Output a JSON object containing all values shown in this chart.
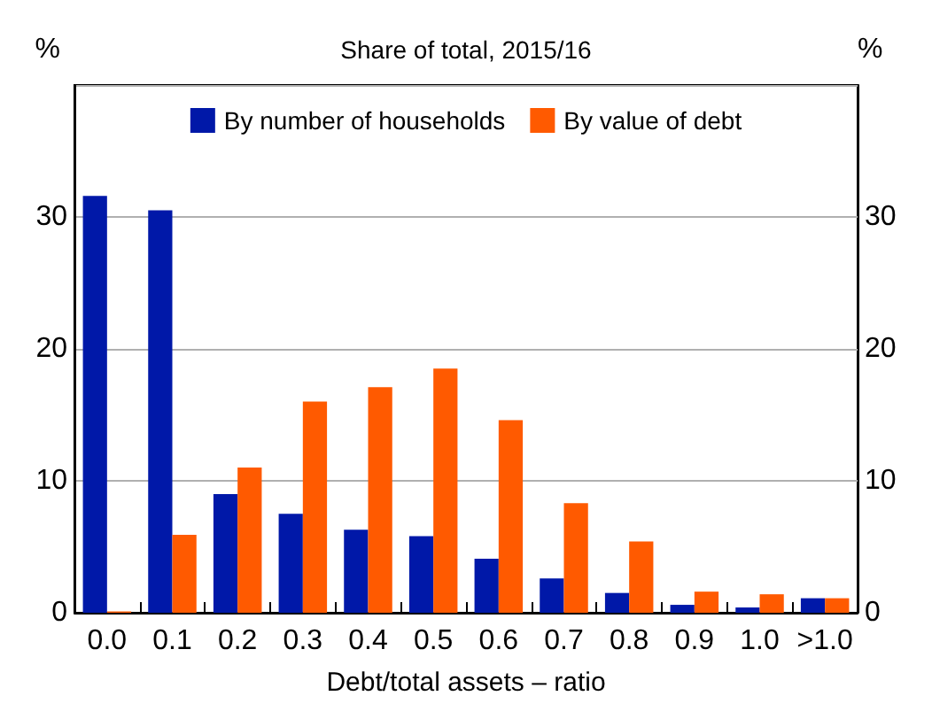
{
  "chart_data": {
    "type": "bar",
    "title": "Share of total, 2015/16",
    "xlabel": "Debt/total assets – ratio",
    "ylabel": "%",
    "y2label": "%",
    "categories": [
      "0.0",
      "0.1",
      "0.2",
      "0.3",
      "0.4",
      "0.5",
      "0.6",
      "0.7",
      "0.8",
      "0.9",
      "1.0",
      ">1.0"
    ],
    "series": [
      {
        "name": "By number of households",
        "color": "#0018a8",
        "values": [
          31.6,
          30.5,
          9.0,
          7.5,
          6.3,
          5.8,
          4.1,
          2.6,
          1.5,
          0.6,
          0.4,
          1.1
        ]
      },
      {
        "name": "By value of debt",
        "color": "#ff5a00",
        "values": [
          0.1,
          5.9,
          11.0,
          16.0,
          17.1,
          18.5,
          14.6,
          8.3,
          5.4,
          1.6,
          1.4,
          1.1
        ]
      }
    ],
    "ylim": [
      0,
      40
    ],
    "yticks": [
      0,
      10,
      20,
      30,
      {
        "value": 40,
        "label": null
      }
    ],
    "y2lim": [
      0,
      40
    ],
    "y2ticks": [
      0,
      10,
      20,
      30,
      {
        "value": 40,
        "label": null
      }
    ],
    "grid": "y",
    "legend": "top"
  }
}
